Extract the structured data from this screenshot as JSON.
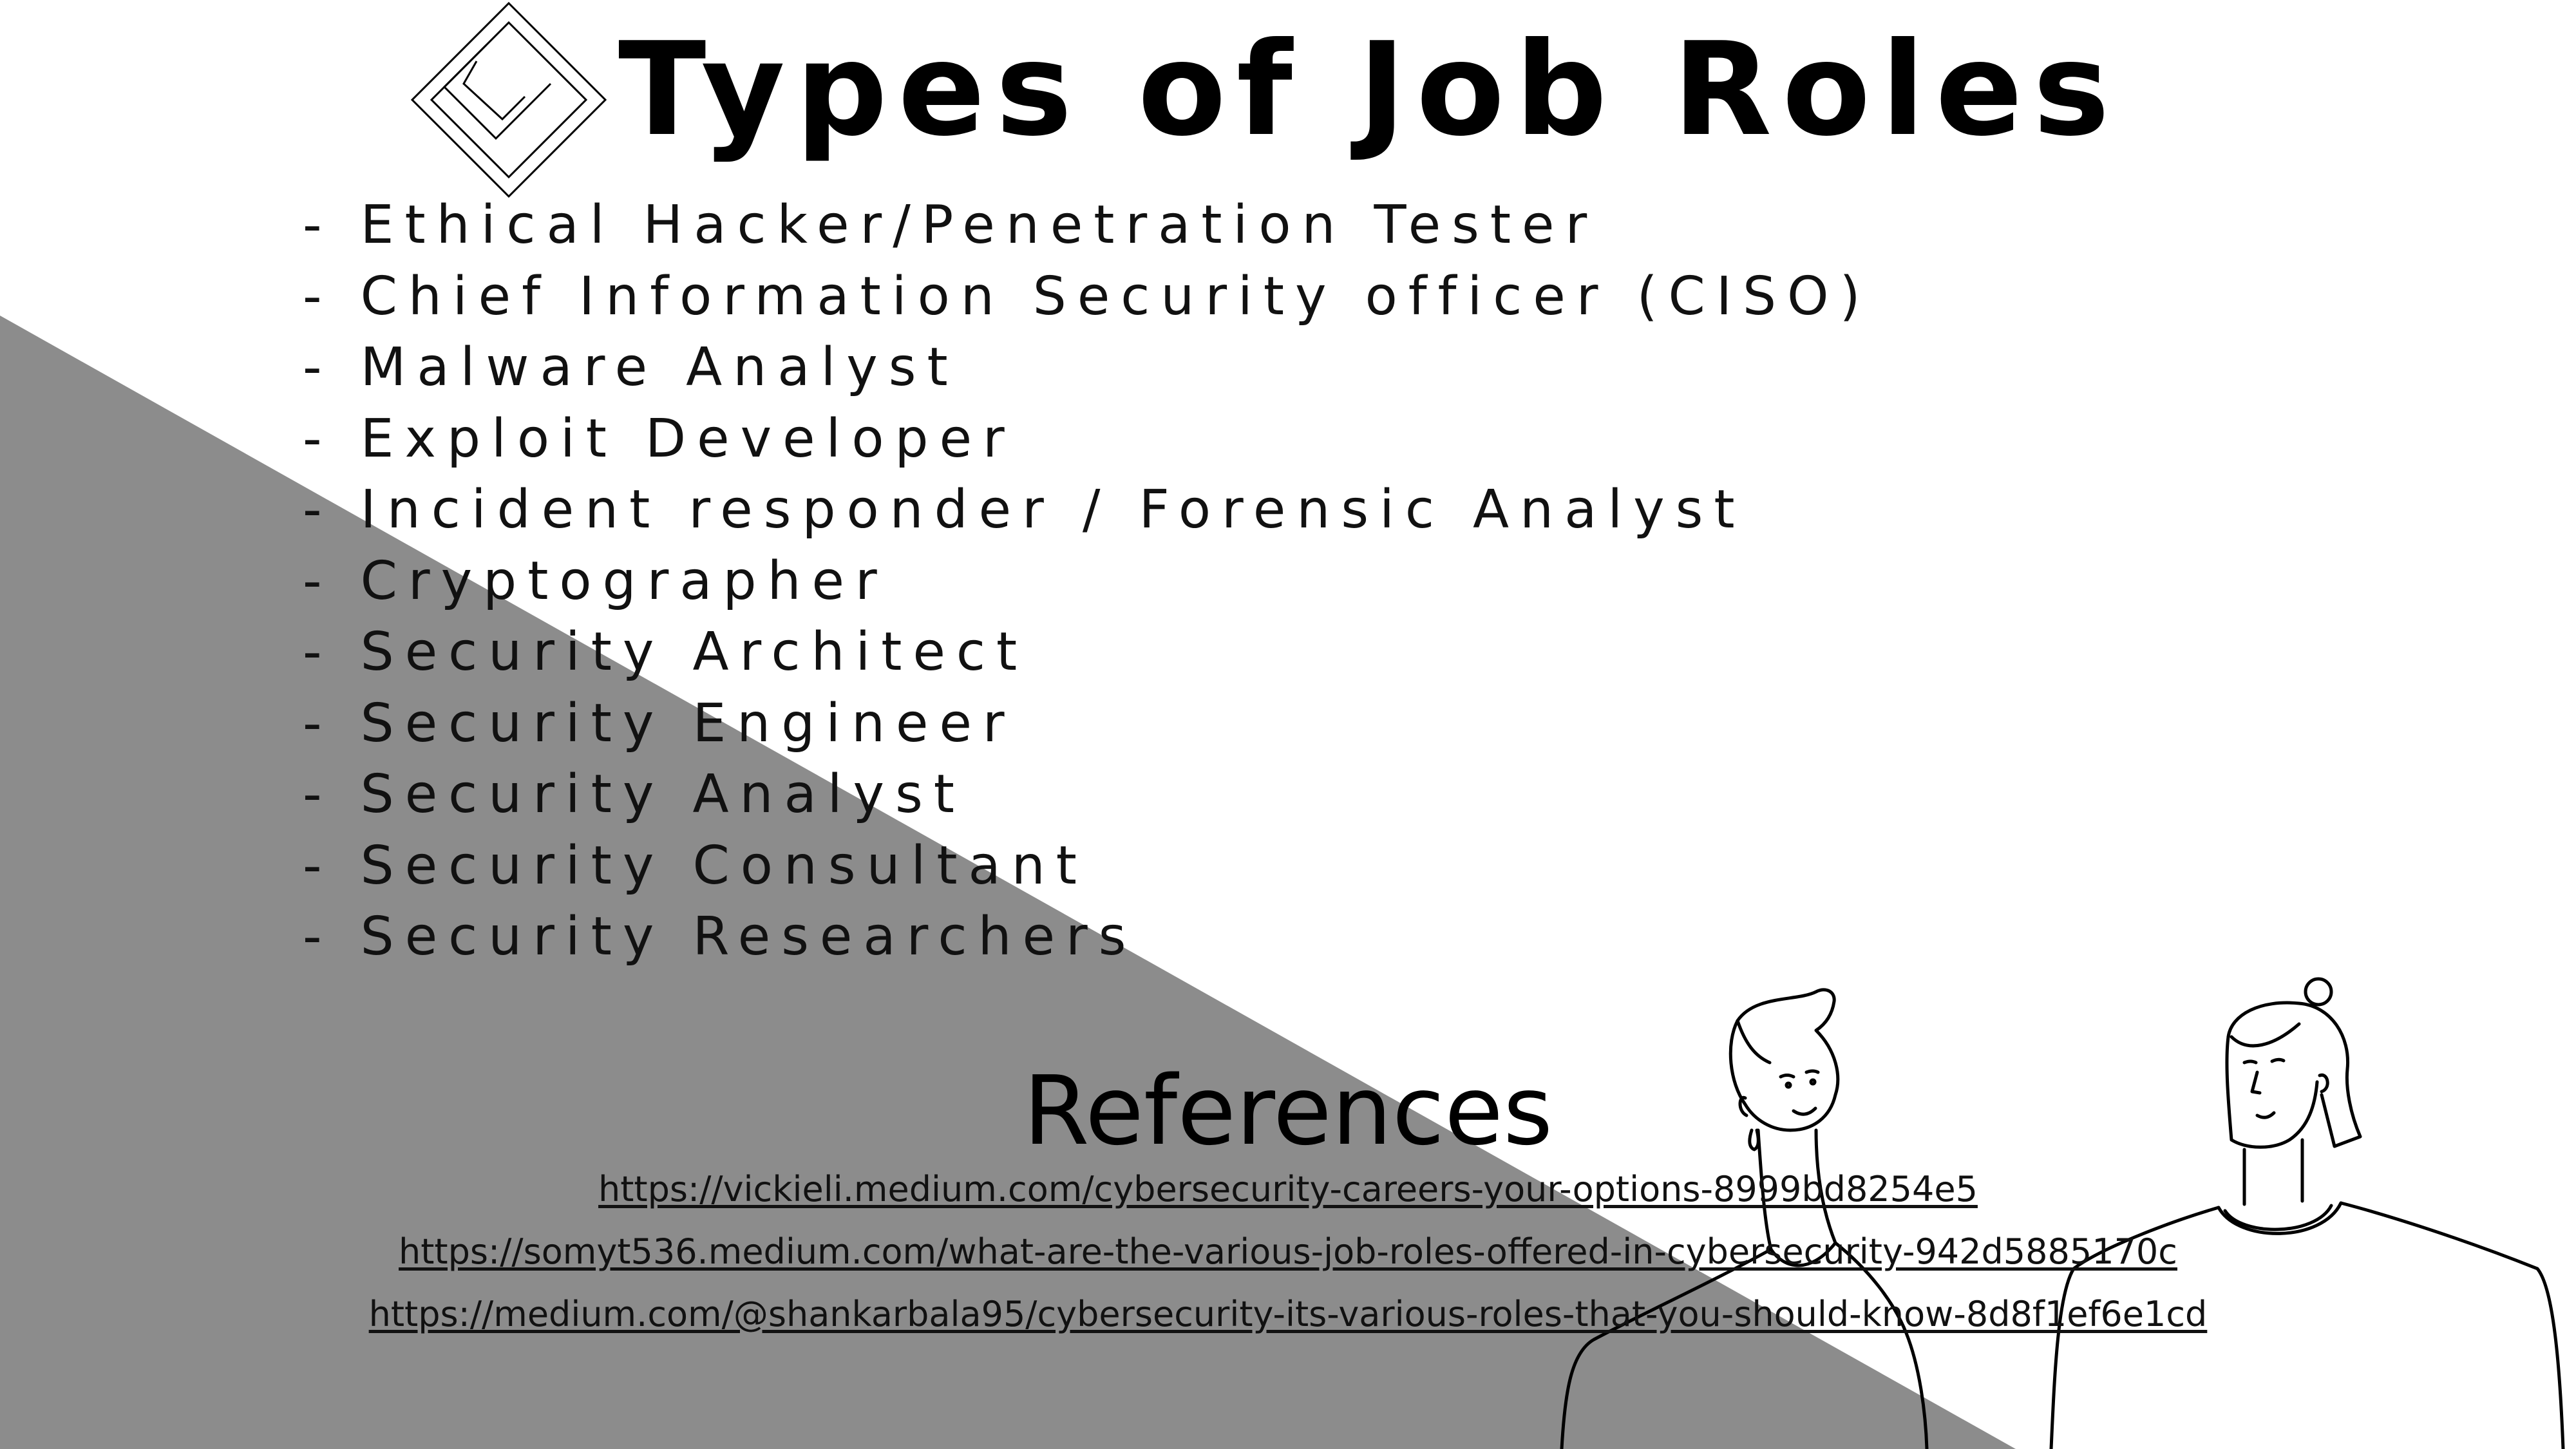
{
  "title": "Types of Job Roles",
  "job_roles": [
    "- Ethical Hacker/Penetration Tester",
    "- Chief Information Security officer (CISO)",
    "- Malware Analyst",
    "- Exploit Developer",
    "- Incident responder / Forensic Analyst",
    "- Cryptographer",
    "- Security Architect",
    "- Security Engineer",
    "- Security Analyst",
    "- Security Consultant",
    "- Security Researchers"
  ],
  "references": {
    "heading": "References",
    "links": [
      "https://vickieli.medium.com/cybersecurity-careers-your-options-8999bd8254e5",
      "https://somyt536.medium.com/what-are-the-various-job-roles-offered-in-cybersecurity-942d5885170c",
      "https://medium.com/@shankarbala95/cybersecurity-its-various-roles-that-you-should-know-8d8f1ef6e1cd"
    ]
  },
  "icons": {
    "logo": "nested-diamond-logo",
    "illustration": "two-people-line-drawing"
  },
  "colors": {
    "background": "#ffffff",
    "gray_triangle": "#8c8c8c",
    "text": "#000000"
  }
}
